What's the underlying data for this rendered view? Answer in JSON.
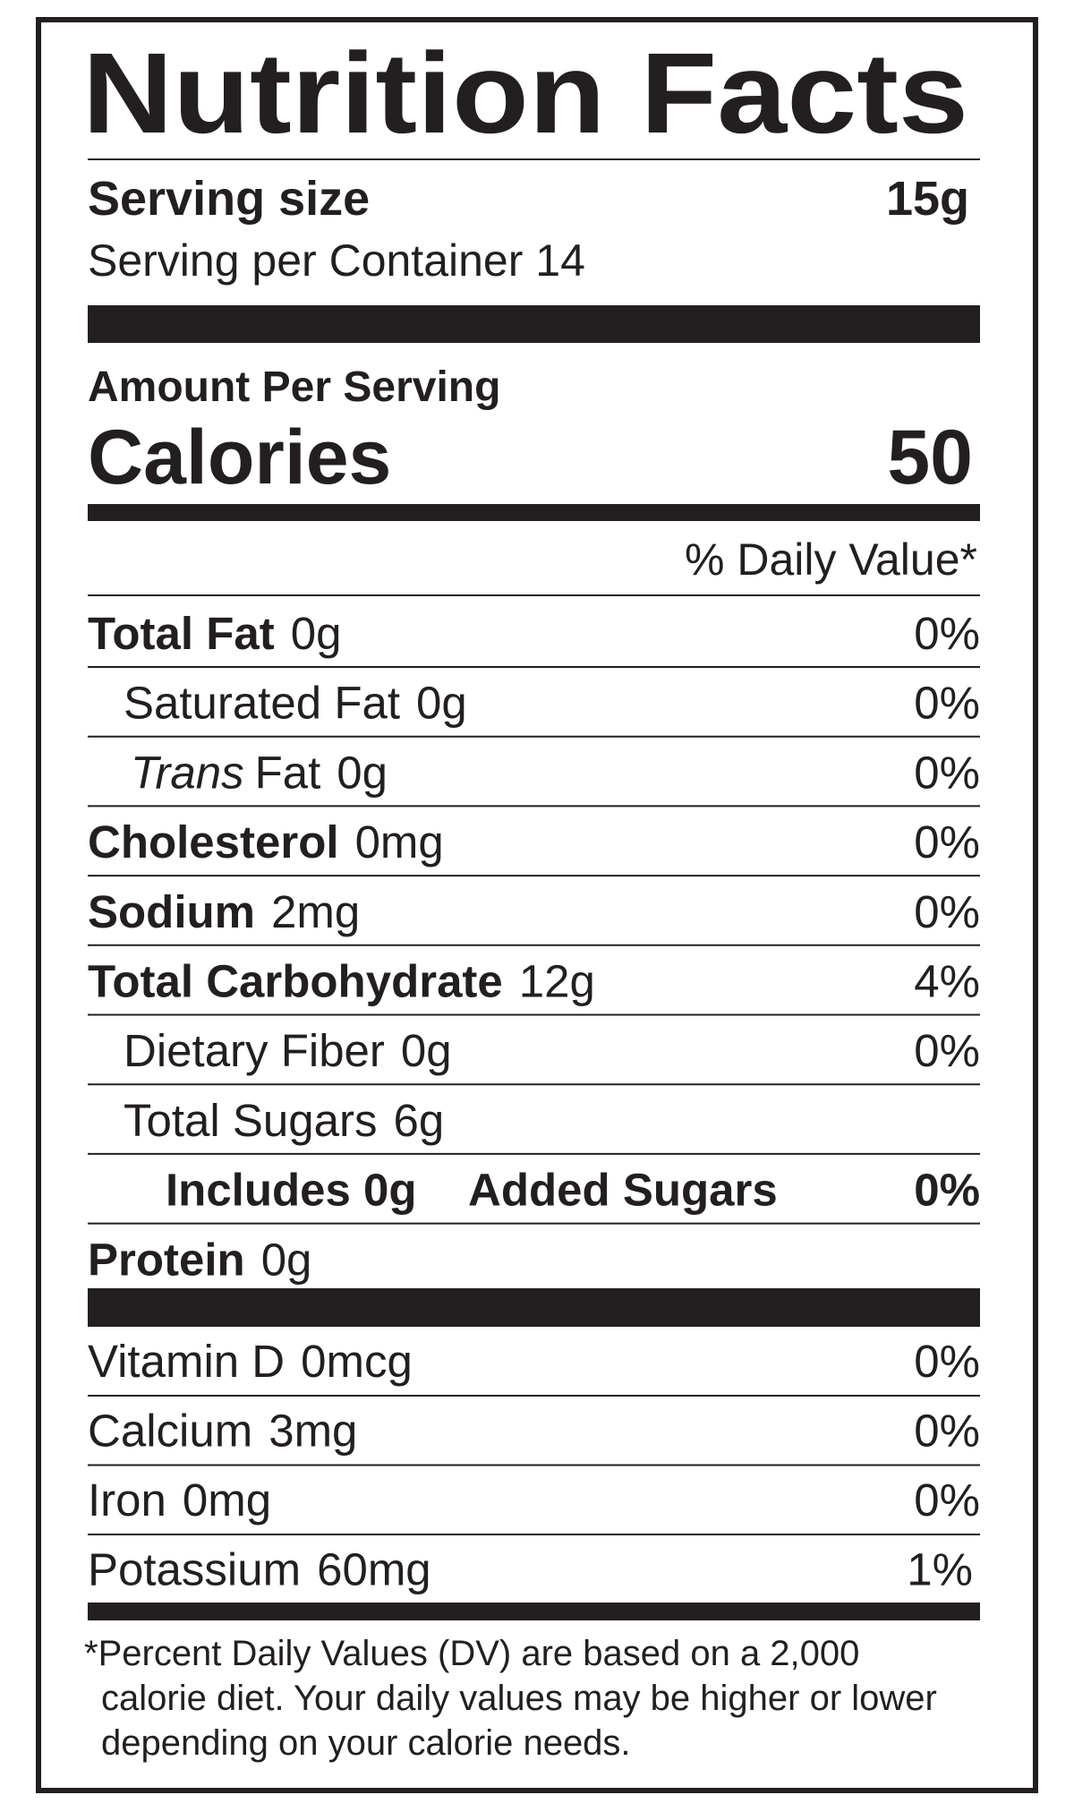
{
  "header": {
    "title": "Nutrition Facts"
  },
  "serving": {
    "size_label": "Serving size",
    "size": "15g",
    "per_container": "Serving per Container 14"
  },
  "amount_per_serving": "Amount Per Serving",
  "calories": {
    "label": "Calories",
    "value": "50"
  },
  "daily_value_header": "% Daily Value*",
  "nutrients": [
    {
      "name": "Total Fat",
      "amount": "0g",
      "dv": "0%"
    },
    {
      "name": "Saturated Fat",
      "amount": "0g",
      "dv": "0%"
    },
    {
      "name_italic": "Trans",
      "name": "Fat",
      "amount": "0g",
      "dv": "0%"
    },
    {
      "name": "Cholesterol",
      "amount": "0mg",
      "dv": "0%"
    },
    {
      "name": "Sodium",
      "amount": "2mg",
      "dv": "0%"
    },
    {
      "name": "Total Carbohydrate",
      "amount": "12g",
      "dv": "4%"
    },
    {
      "name": "Dietary Fiber",
      "amount": "0g",
      "dv": "0%"
    },
    {
      "name": "Total Sugars",
      "amount": "6g"
    },
    {
      "name": "Includes 0g",
      "suffix": "Added Sugars",
      "dv": "0%"
    },
    {
      "name": "Protein",
      "amount": "0g"
    }
  ],
  "vitamins": [
    {
      "name": "Vitamin D",
      "amount": "0mcg",
      "dv": "0%"
    },
    {
      "name": "Calcium",
      "amount": "3mg",
      "dv": "0%"
    },
    {
      "name": "Iron",
      "amount": "0mg",
      "dv": "0%"
    },
    {
      "name": "Potassium",
      "amount": "60mg",
      "dv": "1%"
    }
  ],
  "footnote": [
    "*Percent Daily Values (DV) are based on a 2,000",
    "calorie diet. Your daily values may be higher or lower",
    "depending on your calorie needs."
  ]
}
